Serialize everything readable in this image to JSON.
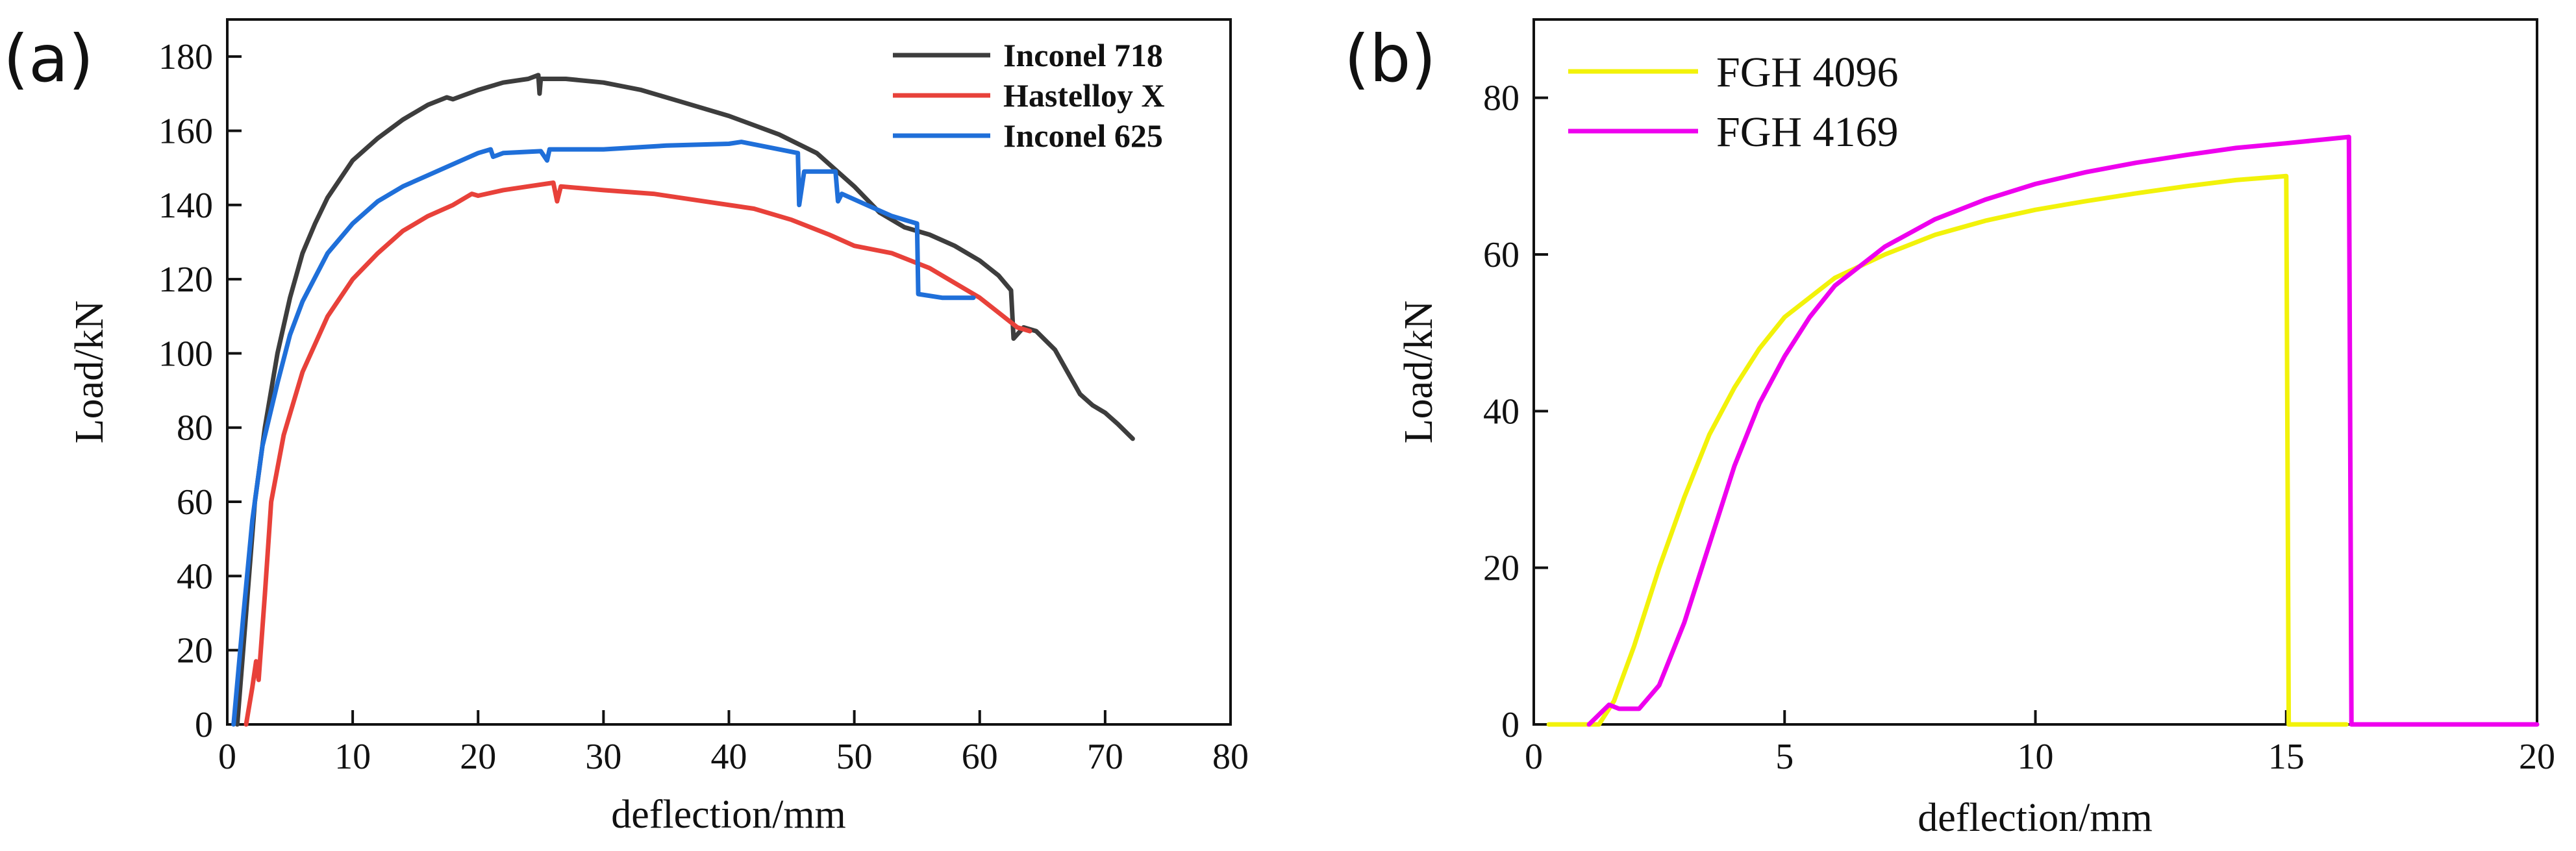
{
  "chart_data": [
    {
      "panel_label": "(a)",
      "type": "line",
      "xlabel": "deflection/mm",
      "ylabel": "Load/kN",
      "xlim": [
        0,
        80
      ],
      "ylim": [
        0,
        190
      ],
      "xticks": [
        0,
        10,
        20,
        30,
        40,
        50,
        60,
        70,
        80
      ],
      "yticks": [
        0,
        20,
        40,
        60,
        80,
        100,
        120,
        140,
        160,
        180
      ],
      "grid": false,
      "legend_position": "top-right",
      "series": [
        {
          "name": "Inconel 718",
          "color": "#3d3d3d",
          "points": [
            [
              0.8,
              0
            ],
            [
              1.5,
              30
            ],
            [
              2.2,
              60
            ],
            [
              3,
              80
            ],
            [
              4,
              100
            ],
            [
              5,
              115
            ],
            [
              6,
              127
            ],
            [
              7,
              135
            ],
            [
              8,
              142
            ],
            [
              10,
              152
            ],
            [
              12,
              158
            ],
            [
              14,
              163
            ],
            [
              16,
              167
            ],
            [
              17.5,
              169
            ],
            [
              18,
              168.5
            ],
            [
              20,
              171
            ],
            [
              22,
              173
            ],
            [
              24,
              174
            ],
            [
              24.8,
              175
            ],
            [
              24.9,
              170
            ],
            [
              25,
              174
            ],
            [
              27,
              174
            ],
            [
              30,
              173
            ],
            [
              33,
              171
            ],
            [
              36,
              168
            ],
            [
              40,
              164
            ],
            [
              44,
              159
            ],
            [
              47,
              154
            ],
            [
              50,
              145
            ],
            [
              52,
              138
            ],
            [
              54,
              134
            ],
            [
              56,
              132
            ],
            [
              58,
              129
            ],
            [
              60,
              125
            ],
            [
              61.5,
              121
            ],
            [
              62.5,
              117
            ],
            [
              62.7,
              104
            ],
            [
              63.5,
              107
            ],
            [
              64.5,
              106
            ],
            [
              66,
              101
            ],
            [
              67,
              95
            ],
            [
              68,
              89
            ],
            [
              69,
              86
            ],
            [
              70,
              84
            ],
            [
              71,
              81
            ],
            [
              72.2,
              77
            ]
          ]
        },
        {
          "name": "Hastelloy X",
          "color": "#e8413a",
          "points": [
            [
              1.5,
              0
            ],
            [
              2,
              10
            ],
            [
              2.3,
              17
            ],
            [
              2.5,
              12
            ],
            [
              3,
              35
            ],
            [
              3.5,
              60
            ],
            [
              4.5,
              78
            ],
            [
              6,
              95
            ],
            [
              8,
              110
            ],
            [
              10,
              120
            ],
            [
              12,
              127
            ],
            [
              14,
              133
            ],
            [
              16,
              137
            ],
            [
              18,
              140
            ],
            [
              19.5,
              143
            ],
            [
              20,
              142.5
            ],
            [
              22,
              144
            ],
            [
              24,
              145
            ],
            [
              26,
              146
            ],
            [
              26.3,
              141
            ],
            [
              26.6,
              145
            ],
            [
              30,
              144
            ],
            [
              34,
              143
            ],
            [
              38,
              141
            ],
            [
              42,
              139
            ],
            [
              45,
              136
            ],
            [
              48,
              132
            ],
            [
              50,
              129
            ],
            [
              53,
              127
            ],
            [
              56,
              123
            ],
            [
              60,
              115
            ],
            [
              63,
              107
            ],
            [
              64,
              106
            ]
          ]
        },
        {
          "name": "Inconel 625",
          "color": "#1f6fd9",
          "points": [
            [
              0.5,
              0
            ],
            [
              1.3,
              30
            ],
            [
              2,
              55
            ],
            [
              2.8,
              75
            ],
            [
              4,
              92
            ],
            [
              5,
              105
            ],
            [
              6,
              114
            ],
            [
              8,
              127
            ],
            [
              10,
              135
            ],
            [
              12,
              141
            ],
            [
              14,
              145
            ],
            [
              16,
              148
            ],
            [
              18,
              151
            ],
            [
              20,
              154
            ],
            [
              21,
              155
            ],
            [
              21.2,
              153
            ],
            [
              22,
              154
            ],
            [
              25,
              154.5
            ],
            [
              25.5,
              152
            ],
            [
              25.7,
              155
            ],
            [
              30,
              155
            ],
            [
              35,
              156
            ],
            [
              40,
              156.5
            ],
            [
              41,
              157
            ],
            [
              44,
              155
            ],
            [
              45.5,
              154
            ],
            [
              45.6,
              140
            ],
            [
              46,
              149
            ],
            [
              48.5,
              149
            ],
            [
              48.7,
              141
            ],
            [
              49,
              143
            ],
            [
              51,
              140
            ],
            [
              53,
              137
            ],
            [
              55,
              135
            ],
            [
              55.1,
              116
            ],
            [
              57,
              115
            ],
            [
              59.5,
              115
            ]
          ]
        }
      ]
    },
    {
      "panel_label": "(b)",
      "type": "line",
      "xlabel": "deflection/mm",
      "ylabel": "Load/kN",
      "xlim": [
        0,
        20
      ],
      "ylim": [
        0,
        90
      ],
      "xticks": [
        0,
        5,
        10,
        15,
        20
      ],
      "yticks": [
        0,
        20,
        40,
        60,
        80
      ],
      "grid": false,
      "legend_position": "top-left",
      "series": [
        {
          "name": "FGH 4096",
          "color": "#f2f20a",
          "points": [
            [
              0.3,
              0
            ],
            [
              1.3,
              0
            ],
            [
              1.6,
              3
            ],
            [
              2,
              10
            ],
            [
              2.5,
              20
            ],
            [
              3,
              29
            ],
            [
              3.5,
              37
            ],
            [
              4,
              43
            ],
            [
              4.5,
              48
            ],
            [
              5,
              52
            ],
            [
              6,
              57
            ],
            [
              7,
              60
            ],
            [
              8,
              62.5
            ],
            [
              9,
              64.3
            ],
            [
              10,
              65.7
            ],
            [
              11,
              66.8
            ],
            [
              12,
              67.8
            ],
            [
              13,
              68.7
            ],
            [
              14,
              69.5
            ],
            [
              15,
              70
            ],
            [
              15.05,
              0
            ],
            [
              16.2,
              0
            ]
          ]
        },
        {
          "name": "FGH 4169",
          "color": "#ee00ee",
          "points": [
            [
              1.1,
              0
            ],
            [
              1.5,
              2.5
            ],
            [
              1.7,
              2
            ],
            [
              2.1,
              2
            ],
            [
              2.5,
              5
            ],
            [
              3,
              13
            ],
            [
              3.5,
              23
            ],
            [
              4,
              33
            ],
            [
              4.5,
              41
            ],
            [
              5,
              47
            ],
            [
              5.5,
              52
            ],
            [
              6,
              56
            ],
            [
              7,
              61
            ],
            [
              8,
              64.5
            ],
            [
              9,
              67
            ],
            [
              10,
              69
            ],
            [
              11,
              70.5
            ],
            [
              12,
              71.7
            ],
            [
              13,
              72.7
            ],
            [
              14,
              73.6
            ],
            [
              15,
              74.2
            ],
            [
              16.25,
              75
            ],
            [
              16.3,
              0
            ],
            [
              20,
              0
            ]
          ]
        }
      ]
    }
  ]
}
